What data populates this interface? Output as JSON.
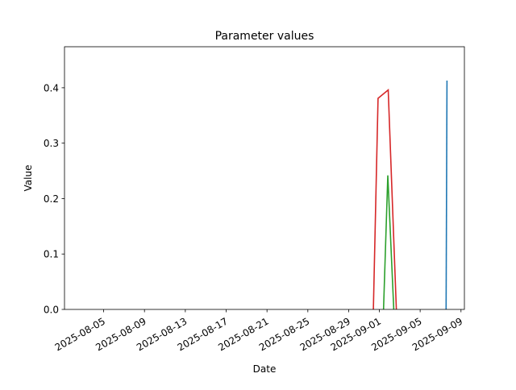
{
  "chart_data": {
    "type": "line",
    "title": "Parameter values",
    "xlabel": "Date",
    "ylabel": "Value",
    "xlim": [
      "2025-08-01T04:00",
      "2025-09-09T08:00"
    ],
    "ylim": [
      0,
      0.474
    ],
    "grid": false,
    "x_ticks": [
      "2025-08-05",
      "2025-08-09",
      "2025-08-13",
      "2025-08-17",
      "2025-08-21",
      "2025-08-25",
      "2025-08-29",
      "2025-09-01",
      "2025-09-05",
      "2025-09-09"
    ],
    "y_ticks": [
      0.0,
      0.1,
      0.2,
      0.3,
      0.4
    ],
    "y_tick_labels": [
      "0.0",
      "0.1",
      "0.2",
      "0.3",
      "0.4"
    ],
    "series": [
      {
        "color": "#1f77b4",
        "points": [
          [
            "2025-09-07T13:00",
            0
          ],
          [
            "2025-09-07T15:00",
            0.413
          ]
        ]
      },
      {
        "color": "#d62728",
        "points": [
          [
            "2025-08-31T10:00",
            0
          ],
          [
            "2025-08-31T21:00",
            0.381
          ],
          [
            "2025-09-01T21:00",
            0.396
          ],
          [
            "2025-09-02T16:00",
            0
          ]
        ]
      },
      {
        "color": "#2ca02c",
        "points": [
          [
            "2025-09-01T10:00",
            0
          ],
          [
            "2025-09-01T20:00",
            0.242
          ],
          [
            "2025-09-02T10:00",
            0
          ]
        ]
      }
    ]
  }
}
